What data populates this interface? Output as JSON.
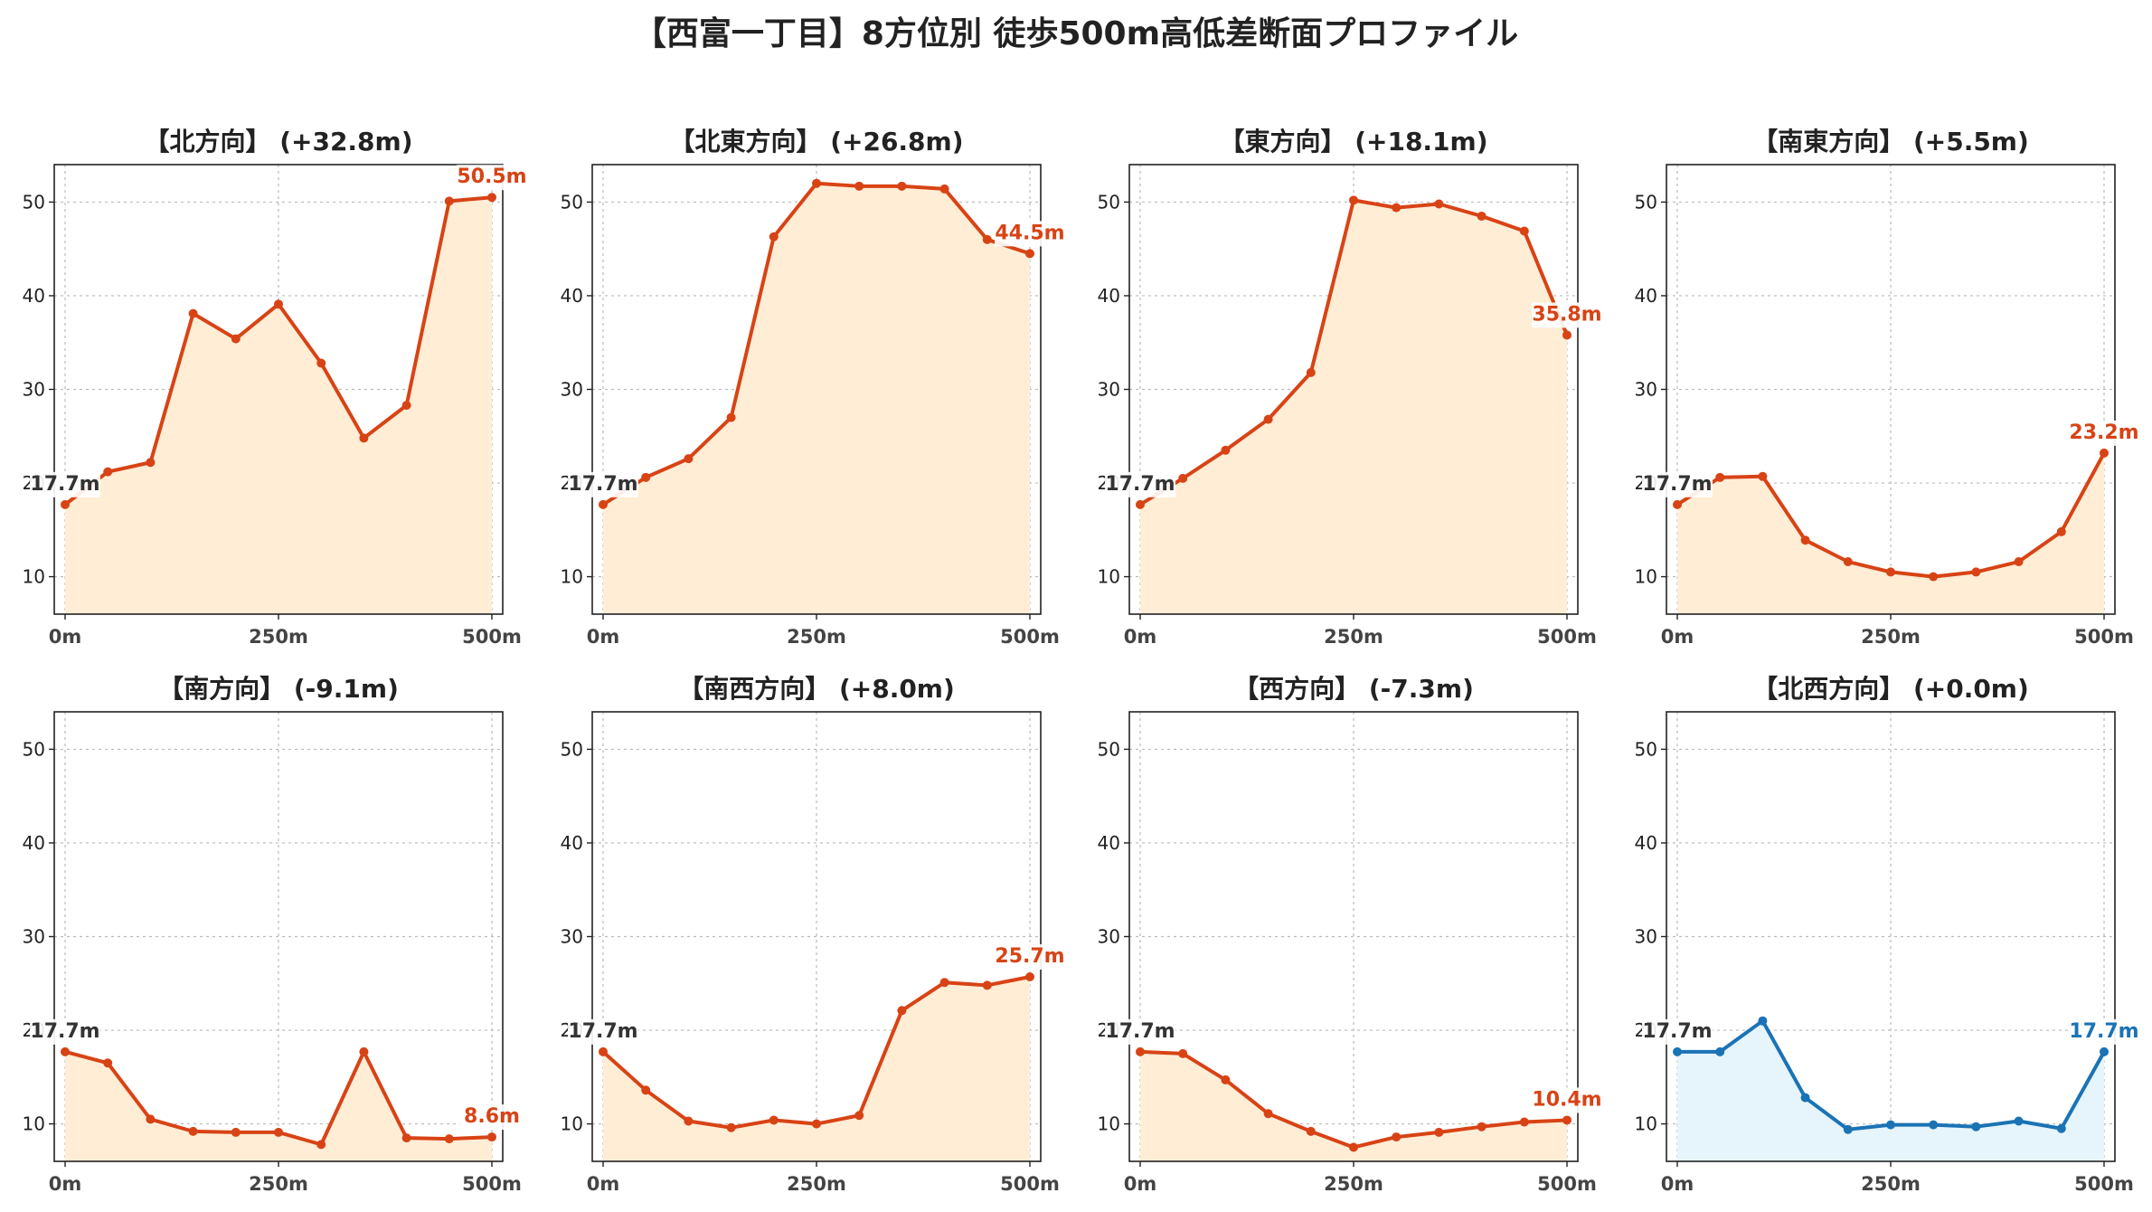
{
  "title": "【西富一丁目】8方位別 徒歩500m高低差断面プロファイル",
  "colors": {
    "up_line": "#d84315",
    "up_fill": "#ffedd5",
    "flat_line": "#1a73b5",
    "flat_fill": "#e6f4fb",
    "start_label": "#333333",
    "grid": "#bbbbbb"
  },
  "chart_data": [
    {
      "type": "area",
      "title": "【北方向】 (+32.8m)",
      "style": "up",
      "x": [
        0,
        50,
        100,
        150,
        200,
        250,
        300,
        350,
        400,
        450,
        500
      ],
      "y": [
        17.7,
        21.2,
        22.2,
        38.1,
        35.4,
        39.1,
        32.8,
        24.8,
        28.3,
        50.1,
        50.5
      ],
      "xticks": [
        "0m",
        "250m",
        "500m"
      ],
      "yticks": [
        "10",
        "20",
        "30",
        "40",
        "50"
      ],
      "start_label": "17.7m",
      "end_label": "50.5m",
      "xlim": [
        0,
        500
      ],
      "ylim": [
        6,
        54
      ],
      "grid": true
    },
    {
      "type": "area",
      "title": "【北東方向】 (+26.8m)",
      "style": "up",
      "x": [
        0,
        50,
        100,
        150,
        200,
        250,
        300,
        350,
        400,
        450,
        500
      ],
      "y": [
        17.7,
        20.6,
        22.6,
        27.0,
        46.3,
        52.0,
        51.7,
        51.7,
        51.4,
        46.0,
        44.5
      ],
      "xticks": [
        "0m",
        "250m",
        "500m"
      ],
      "yticks": [
        "10",
        "20",
        "30",
        "40",
        "50"
      ],
      "start_label": "17.7m",
      "end_label": "44.5m",
      "xlim": [
        0,
        500
      ],
      "ylim": [
        6,
        54
      ],
      "grid": true
    },
    {
      "type": "area",
      "title": "【東方向】 (+18.1m)",
      "style": "up",
      "x": [
        0,
        50,
        100,
        150,
        200,
        250,
        300,
        350,
        400,
        450,
        500
      ],
      "y": [
        17.7,
        20.5,
        23.5,
        26.8,
        31.8,
        50.2,
        49.4,
        49.8,
        48.5,
        46.9,
        35.8
      ],
      "xticks": [
        "0m",
        "250m",
        "500m"
      ],
      "yticks": [
        "10",
        "20",
        "30",
        "40",
        "50"
      ],
      "start_label": "17.7m",
      "end_label": "35.8m",
      "xlim": [
        0,
        500
      ],
      "ylim": [
        6,
        54
      ],
      "grid": true
    },
    {
      "type": "area",
      "title": "【南東方向】 (+5.5m)",
      "style": "up",
      "x": [
        0,
        50,
        100,
        150,
        200,
        250,
        300,
        350,
        400,
        450,
        500
      ],
      "y": [
        17.7,
        20.6,
        20.7,
        13.9,
        11.6,
        10.5,
        10.0,
        10.5,
        11.6,
        14.8,
        23.2
      ],
      "xticks": [
        "0m",
        "250m",
        "500m"
      ],
      "yticks": [
        "10",
        "20",
        "30",
        "40",
        "50"
      ],
      "start_label": "17.7m",
      "end_label": "23.2m",
      "xlim": [
        0,
        500
      ],
      "ylim": [
        6,
        54
      ],
      "grid": true
    },
    {
      "type": "area",
      "title": "【南方向】 (-9.1m)",
      "style": "up",
      "x": [
        0,
        50,
        100,
        150,
        200,
        250,
        300,
        350,
        400,
        450,
        500
      ],
      "y": [
        17.7,
        16.5,
        10.5,
        9.2,
        9.1,
        9.1,
        7.8,
        17.7,
        8.5,
        8.4,
        8.6
      ],
      "xticks": [
        "0m",
        "250m",
        "500m"
      ],
      "yticks": [
        "10",
        "20",
        "30",
        "40",
        "50"
      ],
      "start_label": "17.7m",
      "end_label": "8.6m",
      "xlim": [
        0,
        500
      ],
      "ylim": [
        6,
        54
      ],
      "grid": true
    },
    {
      "type": "area",
      "title": "【南西方向】 (+8.0m)",
      "style": "up",
      "x": [
        0,
        50,
        100,
        150,
        200,
        250,
        300,
        350,
        400,
        450,
        500
      ],
      "y": [
        17.7,
        13.6,
        10.3,
        9.6,
        10.4,
        10.0,
        10.9,
        22.1,
        25.1,
        24.8,
        25.7
      ],
      "xticks": [
        "0m",
        "250m",
        "500m"
      ],
      "yticks": [
        "10",
        "20",
        "30",
        "40",
        "50"
      ],
      "start_label": "17.7m",
      "end_label": "25.7m",
      "xlim": [
        0,
        500
      ],
      "ylim": [
        6,
        54
      ],
      "grid": true
    },
    {
      "type": "area",
      "title": "【西方向】 (-7.3m)",
      "style": "up",
      "x": [
        0,
        50,
        100,
        150,
        200,
        250,
        300,
        350,
        400,
        450,
        500
      ],
      "y": [
        17.7,
        17.5,
        14.7,
        11.1,
        9.2,
        7.5,
        8.6,
        9.1,
        9.7,
        10.2,
        10.4
      ],
      "xticks": [
        "0m",
        "250m",
        "500m"
      ],
      "yticks": [
        "10",
        "20",
        "30",
        "40",
        "50"
      ],
      "start_label": "17.7m",
      "end_label": "10.4m",
      "xlim": [
        0,
        500
      ],
      "ylim": [
        6,
        54
      ],
      "grid": true
    },
    {
      "type": "area",
      "title": "【北西方向】 (+0.0m)",
      "style": "flat",
      "x": [
        0,
        50,
        100,
        150,
        200,
        250,
        300,
        350,
        400,
        450,
        500
      ],
      "y": [
        17.7,
        17.7,
        21.0,
        12.8,
        9.4,
        9.9,
        9.9,
        9.7,
        10.3,
        9.5,
        17.7
      ],
      "xticks": [
        "0m",
        "250m",
        "500m"
      ],
      "yticks": [
        "10",
        "20",
        "30",
        "40",
        "50"
      ],
      "start_label": "17.7m",
      "end_label": "17.7m",
      "xlim": [
        0,
        500
      ],
      "ylim": [
        6,
        54
      ],
      "grid": true
    }
  ]
}
